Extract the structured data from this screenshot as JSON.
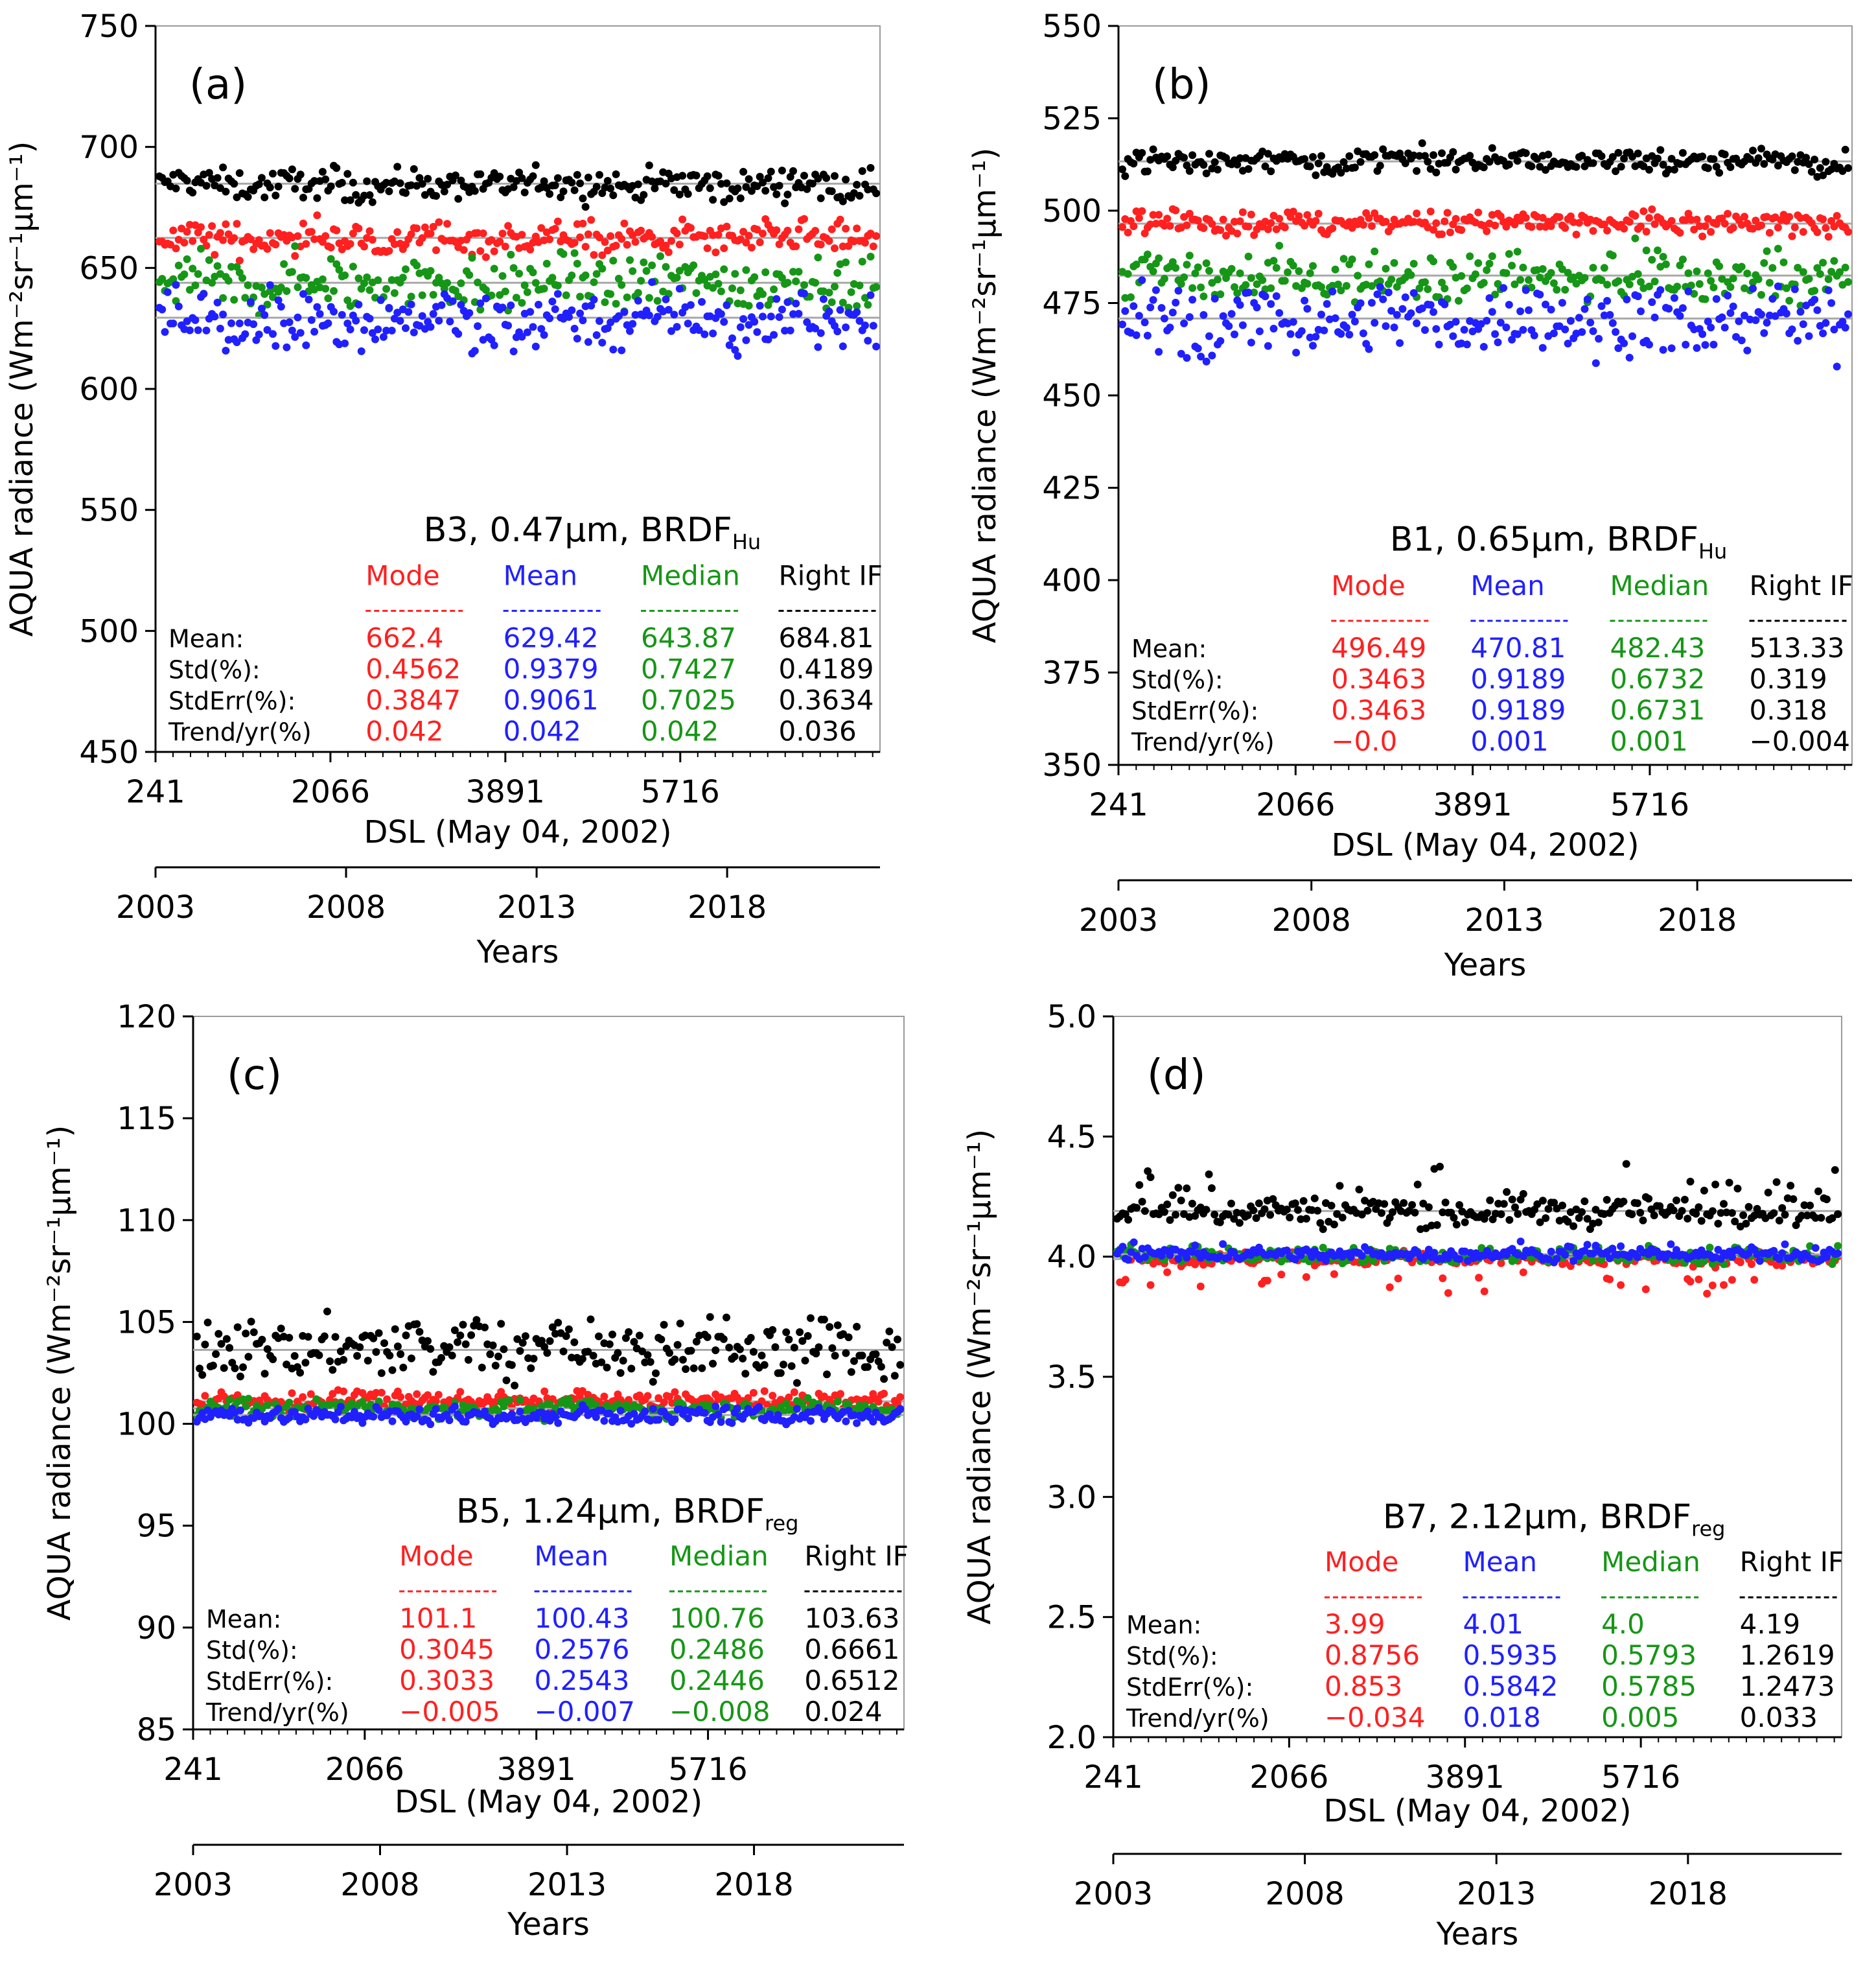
{
  "figure": {
    "years_axis_label": "Years",
    "dsl_axis_label": "DSL (May 04, 2002)",
    "y_axis_label": "AQUA radiance (Wm⁻²sr⁻¹µm⁻¹)"
  },
  "colors": {
    "mode": "#ff2020",
    "mean": "#2020ff",
    "median": "#169616",
    "right_if": "#000000",
    "trend_line": "#a8a8a8"
  },
  "stats_labels": {
    "header": [
      "Mode",
      "Mean",
      "Median",
      "Right IF"
    ],
    "rows": [
      "Mean:",
      "Std(%):",
      "StdErr(%):",
      "Trend/yr(%)"
    ]
  },
  "chart_data": [
    {
      "panel": "(a)",
      "type": "scatter",
      "title_main": "B3, 0.47µm, BRDF",
      "title_sub": "Hu",
      "xlabel": "DSL (May 04, 2002)",
      "ylabel": "AQUA radiance (Wm⁻²sr⁻¹µm⁻¹)",
      "x_ticks": [
        241,
        2066,
        3891,
        5716
      ],
      "xlim": [
        241,
        7800
      ],
      "years_ticks": [
        "2003",
        "2008",
        "2013",
        "2018"
      ],
      "years_xlabel": "Years",
      "ylim": [
        450,
        750
      ],
      "y_ticks": [
        "450",
        "500",
        "550",
        "600",
        "650",
        "700",
        "750"
      ],
      "y_tick_values": [
        450,
        500,
        550,
        600,
        650,
        700,
        750
      ],
      "series": [
        {
          "name": "Right IF",
          "level": 684.81,
          "spread": 3,
          "outliers": -7
        },
        {
          "name": "Mode",
          "level": 662.4,
          "spread": 3.2,
          "outliers": -5
        },
        {
          "name": "Median",
          "level": 643.87,
          "spread": 5.5,
          "outliers": -9
        },
        {
          "name": "Mean",
          "level": 629.42,
          "spread": 5.5,
          "outliers": -14
        }
      ],
      "stats": {
        "Mean": [
          "662.4",
          "629.42",
          "643.87",
          "684.81"
        ],
        "Std": [
          "0.4562",
          "0.9379",
          "0.7427",
          "0.4189"
        ],
        "StdErr": [
          "0.3847",
          "0.9061",
          "0.7025",
          "0.3634"
        ],
        "Trend": [
          "0.042",
          "0.042",
          "0.042",
          "0.036"
        ]
      }
    },
    {
      "panel": "(b)",
      "type": "scatter",
      "title_main": "B1, 0.65µm, BRDF",
      "title_sub": "Hu",
      "xlabel": "DSL (May 04, 2002)",
      "ylabel": "AQUA radiance (Wm⁻²sr⁻¹µm⁻¹)",
      "x_ticks": [
        241,
        2066,
        3891,
        5716
      ],
      "xlim": [
        241,
        7800
      ],
      "years_ticks": [
        "2003",
        "2008",
        "2013",
        "2018"
      ],
      "years_xlabel": "Years",
      "ylim": [
        350,
        550
      ],
      "y_ticks": [
        "350",
        "375",
        "400",
        "425",
        "450",
        "475",
        "500",
        "525",
        "550"
      ],
      "y_tick_values": [
        350,
        375,
        400,
        425,
        450,
        475,
        500,
        525,
        550
      ],
      "series": [
        {
          "name": "Right IF",
          "level": 513.33,
          "spread": 1.6,
          "outliers": 2
        },
        {
          "name": "Mode",
          "level": 496.49,
          "spread": 1.7,
          "outliers": 2
        },
        {
          "name": "Median",
          "level": 482.43,
          "spread": 3.2,
          "outliers": -5
        },
        {
          "name": "Mean",
          "level": 470.81,
          "spread": 4.3,
          "outliers": -11
        }
      ],
      "stats": {
        "Mean": [
          "496.49",
          "470.81",
          "482.43",
          "513.33"
        ],
        "Std": [
          "0.3463",
          "0.9189",
          "0.6732",
          "0.319"
        ],
        "StdErr": [
          "0.3463",
          "0.9189",
          "0.6731",
          "0.318"
        ],
        "Trend": [
          "−0.0",
          "0.001",
          "0.001",
          "−0.004"
        ]
      }
    },
    {
      "panel": "(c)",
      "type": "scatter",
      "title_main": "B5, 1.24µm, BRDF",
      "title_sub": "reg",
      "xlabel": "DSL (May 04, 2002)",
      "ylabel": "AQUA radiance (Wm⁻²sr⁻¹µm⁻¹)",
      "x_ticks": [
        241,
        2066,
        3891,
        5716
      ],
      "xlim": [
        241,
        7800
      ],
      "years_ticks": [
        "2003",
        "2008",
        "2013",
        "2018"
      ],
      "years_xlabel": "Years",
      "ylim": [
        85,
        120
      ],
      "y_ticks": [
        "85",
        "90",
        "95",
        "100",
        "105",
        "110",
        "115",
        "120"
      ],
      "y_tick_values": [
        85,
        90,
        95,
        100,
        105,
        110,
        115,
        120
      ],
      "series": [
        {
          "name": "Right IF",
          "level": 103.63,
          "spread": 0.7,
          "outliers": 1.5
        },
        {
          "name": "Mode",
          "level": 101.1,
          "spread": 0.2,
          "outliers": 0.5
        },
        {
          "name": "Median",
          "level": 100.76,
          "spread": 0.2,
          "outliers": -0.6
        },
        {
          "name": "Mean",
          "level": 100.43,
          "spread": 0.2,
          "outliers": -0.4
        }
      ],
      "stats": {
        "Mean": [
          "101.1",
          "100.43",
          "100.76",
          "103.63"
        ],
        "Std": [
          "0.3045",
          "0.2576",
          "0.2486",
          "0.6661"
        ],
        "StdErr": [
          "0.3033",
          "0.2543",
          "0.2446",
          "0.6512"
        ],
        "Trend": [
          "−0.005",
          "−0.007",
          "−0.008",
          "0.024"
        ]
      }
    },
    {
      "panel": "(d)",
      "type": "scatter",
      "title_main": "B7, 2.12µm, BRDF",
      "title_sub": "reg",
      "xlabel": "DSL (May 04, 2002)",
      "ylabel": "AQUA radiance (Wm⁻²sr⁻¹µm⁻¹)",
      "x_ticks": [
        241,
        2066,
        3891,
        5716
      ],
      "xlim": [
        241,
        7800
      ],
      "years_ticks": [
        "2003",
        "2008",
        "2013",
        "2018"
      ],
      "years_xlabel": "Years",
      "ylim": [
        2.0,
        5.0
      ],
      "y_ticks": [
        "2.0",
        "2.5",
        "3.0",
        "3.5",
        "4.0",
        "4.5",
        "5.0"
      ],
      "y_tick_values": [
        2.0,
        2.5,
        3.0,
        3.5,
        4.0,
        4.5,
        5.0
      ],
      "series": [
        {
          "name": "Right IF",
          "level": 4.19,
          "spread": 0.03,
          "outliers": 0.2
        },
        {
          "name": "Mode",
          "level": 3.99,
          "spread": 0.015,
          "outliers": -0.14
        },
        {
          "name": "Median",
          "level": 4.0,
          "spread": 0.012,
          "outliers": 0.05
        },
        {
          "name": "Mean",
          "level": 4.01,
          "spread": 0.012,
          "outliers": 0.05
        }
      ],
      "stats": {
        "Mean": [
          "3.99",
          "4.01",
          "4.0",
          "4.19"
        ],
        "Std": [
          "0.8756",
          "0.5935",
          "0.5793",
          "1.2619"
        ],
        "StdErr": [
          "0.853",
          "0.5842",
          "0.5785",
          "1.2473"
        ],
        "Trend": [
          "−0.034",
          "0.018",
          "0.005",
          "0.033"
        ]
      }
    }
  ]
}
